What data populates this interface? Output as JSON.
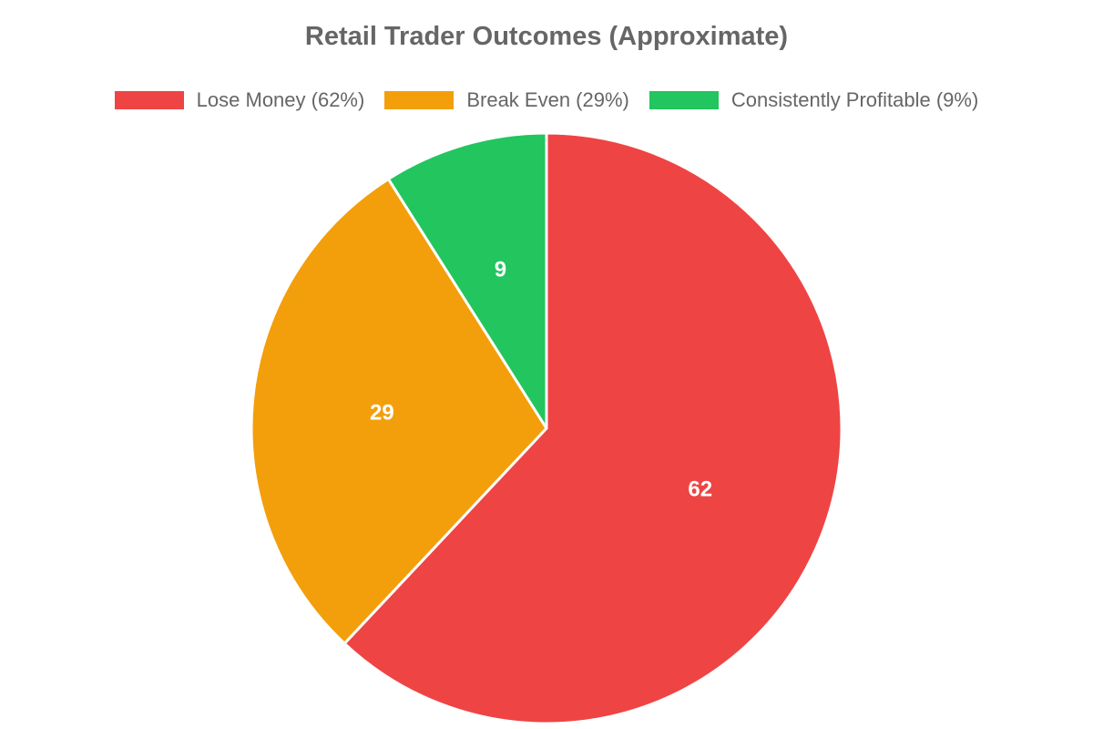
{
  "chart_data": {
    "type": "pie",
    "title": "Retail Trader Outcomes (Approximate)",
    "series": [
      {
        "values": [
          62,
          29,
          9
        ]
      }
    ],
    "slices": [
      {
        "value": 62,
        "label": "62",
        "legend": "Lose Money (62%)",
        "color": "#ef4444"
      },
      {
        "value": 29,
        "label": "29",
        "legend": "Break Even (29%)",
        "color": "#f39f0b"
      },
      {
        "value": 9,
        "label": "9",
        "legend": "Consistently Profitable (9%)",
        "color": "#22c55e"
      }
    ],
    "legend_position": "top",
    "start_angle": "12 o'clock",
    "direction": "clockwise"
  }
}
